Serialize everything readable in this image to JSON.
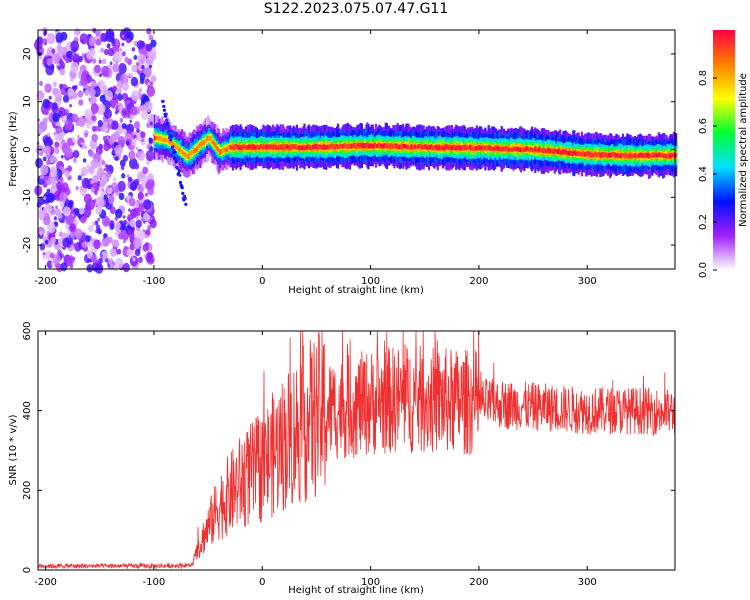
{
  "title": "S122.2023.075.07.47.G11",
  "chart_data": [
    {
      "type": "heatmap",
      "xlabel": "Height of straight line (km)",
      "ylabel": "Frequency (Hz)",
      "xlim": [
        -207,
        381
      ],
      "ylim": [
        -25,
        25
      ],
      "x_ticks": [
        -200,
        -100,
        0,
        100,
        200,
        300
      ],
      "y_ticks": [
        -20,
        -10,
        0,
        10,
        20
      ],
      "noise_region_x": [
        -207,
        -100
      ],
      "ridge": {
        "x": [
          -100,
          -90,
          -80,
          -70,
          -60,
          -50,
          -40,
          -30,
          0,
          50,
          100,
          150,
          200,
          250,
          300,
          340,
          381
        ],
        "y": [
          2.5,
          2,
          0.5,
          -1.5,
          0.5,
          2.5,
          -0.5,
          0.5,
          0.5,
          0.5,
          0.8,
          0.5,
          0.3,
          0.0,
          -1.0,
          -1.3,
          -1.2
        ]
      },
      "colorbar": {
        "label": "Normalized spectral amplitude",
        "range": [
          0,
          1
        ],
        "ticks": [
          "0.0",
          "0.2",
          "0.4",
          "0.6",
          "0.8"
        ],
        "colors": [
          "#ffffff",
          "#a020ff",
          "#0010ff",
          "#00e0ff",
          "#00ff30",
          "#ffff00",
          "#ff8000",
          "#ff0040"
        ]
      }
    },
    {
      "type": "line",
      "xlabel": "Height of straight line (km)",
      "ylabel": "SNR (10 * v/v)",
      "xlim": [
        -207,
        381
      ],
      "ylim": [
        0,
        600
      ],
      "x_ticks": [
        -200,
        -100,
        0,
        100,
        200,
        300
      ],
      "y_ticks": [
        0,
        200,
        400,
        600
      ],
      "color": "#f03030",
      "envelope": {
        "x": [
          -207,
          -100,
          -65,
          -55,
          -40,
          -20,
          0,
          20,
          40,
          60,
          80,
          100,
          130,
          160,
          200,
          250,
          300,
          350,
          381
        ],
        "y": [
          10,
          10,
          12,
          80,
          160,
          220,
          260,
          320,
          370,
          400,
          410,
          420,
          430,
          425,
          420,
          410,
          400,
          400,
          395
        ]
      }
    }
  ]
}
